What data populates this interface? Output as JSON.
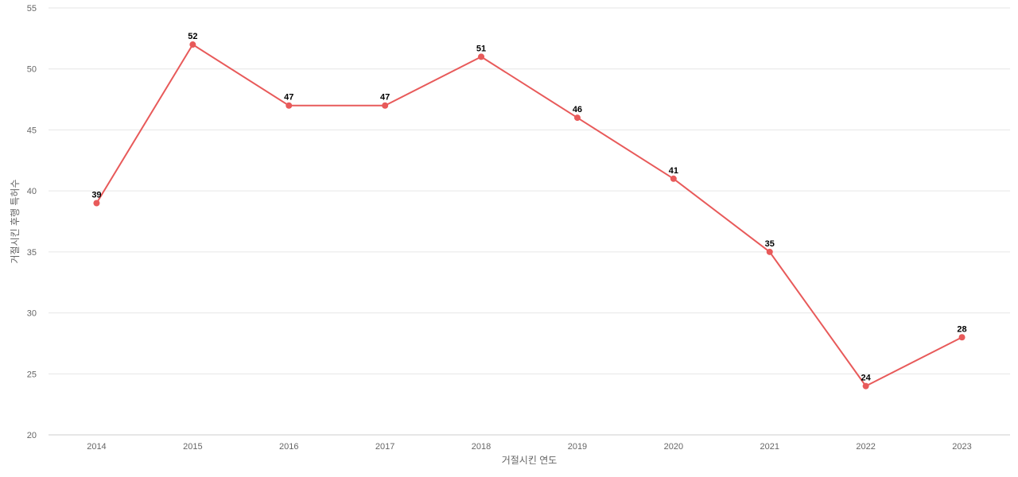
{
  "chart_data": {
    "type": "line",
    "title": "",
    "xlabel": "거절시킨 연도",
    "ylabel": "거절시킨 후행 특허수",
    "categories": [
      "2014",
      "2015",
      "2016",
      "2017",
      "2018",
      "2019",
      "2020",
      "2021",
      "2022",
      "2023"
    ],
    "series": [
      {
        "values": [
          39,
          52,
          47,
          47,
          51,
          46,
          41,
          35,
          24,
          28
        ],
        "color": "#e85a5a"
      }
    ],
    "ylim": [
      20,
      55
    ],
    "yticks": [
      20,
      25,
      30,
      35,
      40,
      45,
      50,
      55
    ],
    "grid": true,
    "data_labels": true
  }
}
